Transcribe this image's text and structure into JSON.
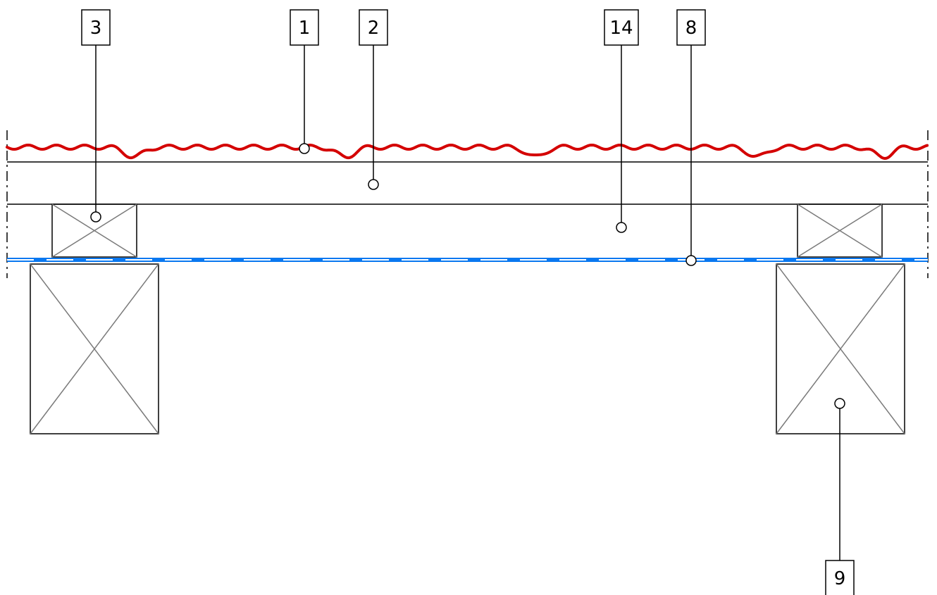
{
  "colors": {
    "background": "#ffffff",
    "line": "#000000",
    "timber_cross": "#7a7a7a",
    "roof_covering": "#d40000",
    "membrane": "#0a78f0",
    "membrane_dash": "#ffffff"
  },
  "callouts": [
    {
      "id": "tag-3",
      "label": "3",
      "component": "battens"
    },
    {
      "id": "tag-1",
      "label": "1",
      "component": "roof-covering"
    },
    {
      "id": "tag-2",
      "label": "2",
      "component": "sheathing-layer"
    },
    {
      "id": "tag-14",
      "label": "14",
      "component": "air-gap"
    },
    {
      "id": "tag-8",
      "label": "8",
      "component": "membrane"
    },
    {
      "id": "tag-9",
      "label": "9",
      "component": "rafter"
    }
  ]
}
